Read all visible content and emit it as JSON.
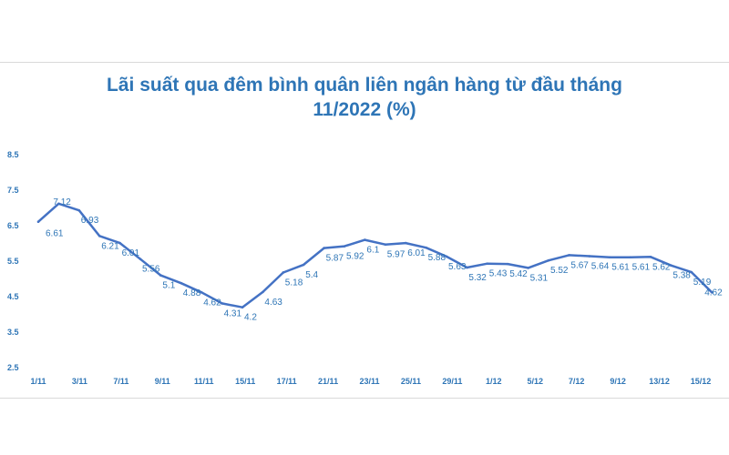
{
  "chart_data": {
    "type": "line",
    "title": [
      "Lãi suất qua đêm bình quân liên ngân hàng từ đầu tháng",
      "11/2022 (%)"
    ],
    "xlabel": "",
    "ylabel": "",
    "ylim": [
      2.5,
      8.5
    ],
    "yticks": [
      "8.5",
      "7.5",
      "6.5",
      "5.5",
      "4.5",
      "3.5",
      "2.5"
    ],
    "xtick_labels": [
      "1/11",
      "3/11",
      "7/11",
      "9/11",
      "11/11",
      "15/11",
      "17/11",
      "21/11",
      "23/11",
      "25/11",
      "29/11",
      "1/12",
      "5/12",
      "7/12",
      "9/12",
      "13/12",
      "15/12"
    ],
    "grid": false,
    "legend": "none",
    "line_color": "#4472c4",
    "label_color": "#2e75b6",
    "series": [
      {
        "labels": [
          "6.61",
          "7.12",
          "6.93",
          "6.21",
          "6.01",
          "5.56",
          "5.1",
          "4.88",
          "4.62",
          "4.31",
          "4.2",
          "4.63",
          "5.18",
          "5.4",
          "5.87",
          "5.92",
          "6.1",
          "5.97",
          "6.01",
          "5.88",
          "5.63",
          "5.32",
          "5.43",
          "5.42",
          "5.31",
          "5.52",
          "5.67",
          "5.64",
          "5.61",
          "5.61",
          "5.62",
          "5.38",
          "5.19",
          "4.62"
        ],
        "values": [
          6.61,
          7.12,
          6.93,
          6.21,
          6.01,
          5.56,
          5.1,
          4.88,
          4.62,
          4.31,
          4.2,
          4.63,
          5.18,
          5.4,
          5.87,
          5.92,
          6.1,
          5.97,
          6.01,
          5.88,
          5.63,
          5.32,
          5.43,
          5.42,
          5.31,
          5.52,
          5.67,
          5.64,
          5.61,
          5.61,
          5.62,
          5.38,
          5.19,
          4.62
        ]
      }
    ]
  }
}
